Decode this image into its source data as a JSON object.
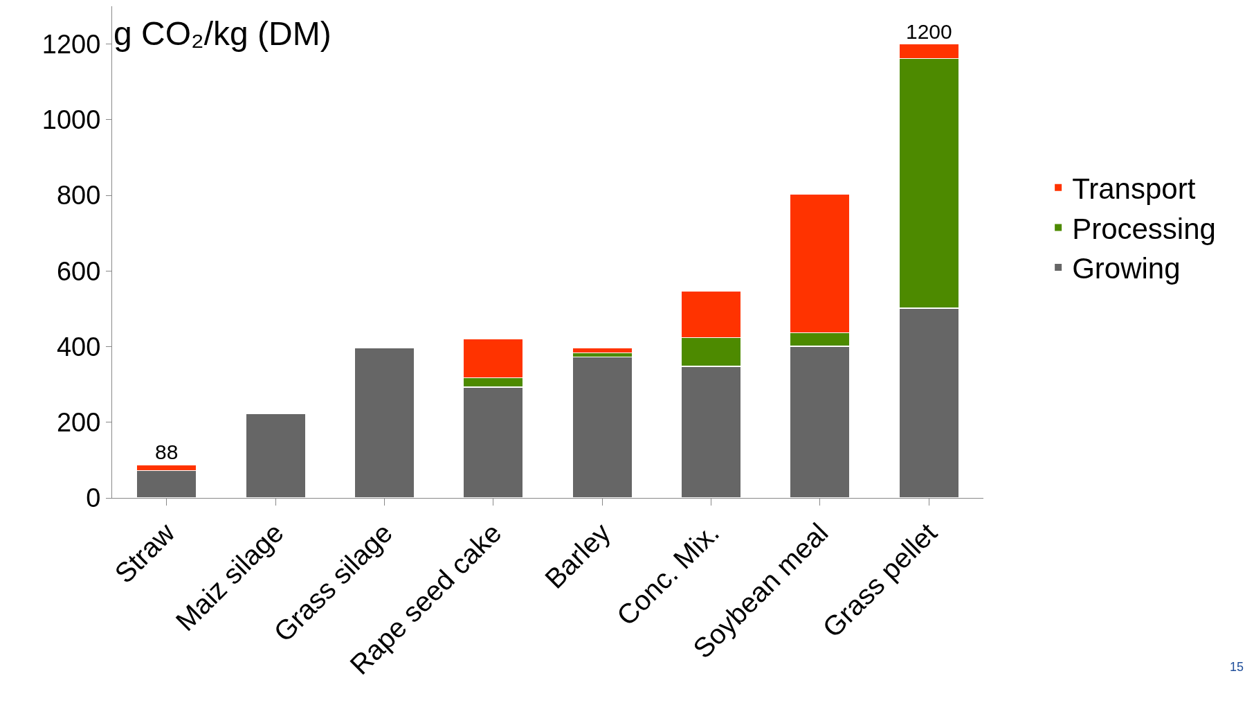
{
  "chart_data": {
    "type": "bar",
    "stacked": true,
    "ylabel": "g CO₂/kg (DM)",
    "categories": [
      "Straw",
      "Maiz silage",
      "Grass silage",
      "Rape seed cake",
      "Barley",
      "Conc. Mix.",
      "Soybean meal",
      "Grass pellet"
    ],
    "series": [
      {
        "name": "Growing",
        "color": "#666666",
        "values": [
          72,
          223,
          396,
          293,
          373,
          348,
          401,
          502
        ]
      },
      {
        "name": "Processing",
        "color": "#4d8a00",
        "values": [
          null,
          null,
          null,
          25,
          11,
          76,
          36,
          660
        ]
      },
      {
        "name": "Transport",
        "color": "#ff3300",
        "values": [
          16,
          null,
          null,
          102,
          12,
          123,
          366,
          38
        ]
      }
    ],
    "totals": [
      "88",
      null,
      null,
      null,
      null,
      null,
      null,
      "1200"
    ],
    "ylim": [
      0,
      1300
    ],
    "yticks": [
      0,
      200,
      400,
      600,
      800,
      1000,
      1200
    ],
    "legend": "right",
    "annotations": [
      "15"
    ]
  }
}
